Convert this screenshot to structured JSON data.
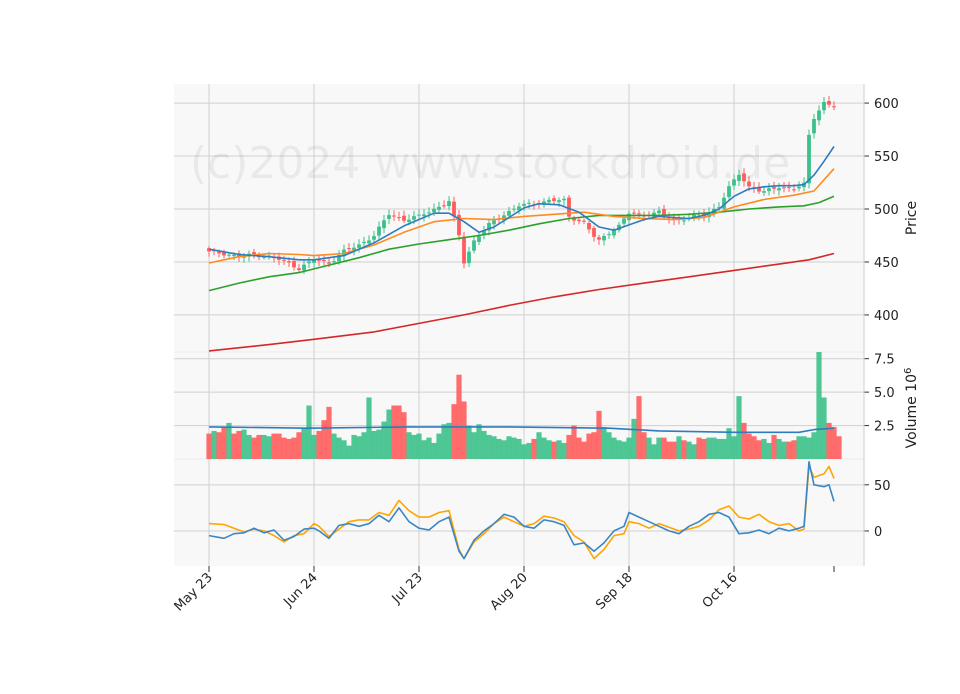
{
  "watermark": "(c)2024 www.stockdroid.de",
  "colors": {
    "panel_bg": "#f8f8f8",
    "grid": "#d0d0d0",
    "up": "#3cc18a",
    "down": "#ff5c5c",
    "sma_fast": "#2e7cbf",
    "sma_mid": "#ff8a1f",
    "sma_slow": "#2ca02c",
    "sma_long": "#d62728",
    "vol_avg": "#2e7cbf",
    "osc_a": "#3b86c4",
    "osc_b": "#ffa500"
  },
  "chart_data": {
    "type": "candlestick",
    "x_tick_labels": [
      "May 23",
      "Jun 24",
      "Jul 23",
      "Aug 20",
      "Sep 18",
      "Oct 16"
    ],
    "x_tick_indices": [
      0,
      21,
      42,
      63,
      84,
      105
    ],
    "n_sessions": 126,
    "price_panel": {
      "ylabel": "Price",
      "yticks": [
        400,
        450,
        500,
        550,
        600
      ],
      "ylim": [
        365,
        618
      ],
      "grid": true,
      "anchors": [
        [
          0,
          460
        ],
        [
          3,
          458
        ],
        [
          6,
          455
        ],
        [
          9,
          457
        ],
        [
          12,
          455
        ],
        [
          15,
          451
        ],
        [
          18,
          444
        ],
        [
          21,
          452
        ],
        [
          24,
          449
        ],
        [
          27,
          460
        ],
        [
          30,
          466
        ],
        [
          33,
          475
        ],
        [
          36,
          495
        ],
        [
          39,
          490
        ],
        [
          42,
          493
        ],
        [
          45,
          500
        ],
        [
          48,
          507
        ],
        [
          50,
          475
        ],
        [
          51,
          450
        ],
        [
          53,
          470
        ],
        [
          56,
          485
        ],
        [
          59,
          495
        ],
        [
          62,
          503
        ],
        [
          65,
          505
        ],
        [
          68,
          508
        ],
        [
          71,
          508
        ],
        [
          72,
          493
        ],
        [
          75,
          487
        ],
        [
          77,
          474
        ],
        [
          78,
          470
        ],
        [
          80,
          478
        ],
        [
          82,
          484
        ],
        [
          84,
          496
        ],
        [
          87,
          494
        ],
        [
          90,
          497
        ],
        [
          93,
          489
        ],
        [
          96,
          492
        ],
        [
          99,
          494
        ],
        [
          102,
          503
        ],
        [
          104,
          520
        ],
        [
          106,
          533
        ],
        [
          108,
          521
        ],
        [
          111,
          516
        ],
        [
          114,
          521
        ],
        [
          117,
          519
        ],
        [
          119,
          523
        ],
        [
          120,
          570
        ],
        [
          121,
          585
        ],
        [
          123,
          601
        ],
        [
          125,
          596
        ]
      ],
      "sma_fast": [
        [
          0,
          462
        ],
        [
          6,
          457
        ],
        [
          12,
          455
        ],
        [
          18,
          452
        ],
        [
          21,
          452
        ],
        [
          27,
          456
        ],
        [
          33,
          468
        ],
        [
          39,
          484
        ],
        [
          45,
          496
        ],
        [
          48,
          496
        ],
        [
          51,
          488
        ],
        [
          54,
          478
        ],
        [
          57,
          483
        ],
        [
          60,
          492
        ],
        [
          63,
          501
        ],
        [
          66,
          505
        ],
        [
          70,
          504
        ],
        [
          74,
          497
        ],
        [
          78,
          483
        ],
        [
          81,
          480
        ],
        [
          84,
          485
        ],
        [
          87,
          490
        ],
        [
          90,
          493
        ],
        [
          93,
          492
        ],
        [
          96,
          491
        ],
        [
          99,
          494
        ],
        [
          102,
          500
        ],
        [
          105,
          512
        ],
        [
          108,
          519
        ],
        [
          111,
          521
        ],
        [
          114,
          522
        ],
        [
          117,
          522
        ],
        [
          119,
          523
        ],
        [
          121,
          532
        ],
        [
          123,
          545
        ],
        [
          125,
          559
        ]
      ],
      "sma_mid": [
        [
          0,
          449
        ],
        [
          6,
          455
        ],
        [
          12,
          458
        ],
        [
          18,
          457
        ],
        [
          21,
          456
        ],
        [
          27,
          458
        ],
        [
          33,
          466
        ],
        [
          39,
          478
        ],
        [
          45,
          488
        ],
        [
          51,
          491
        ],
        [
          57,
          490
        ],
        [
          63,
          493
        ],
        [
          69,
          495
        ],
        [
          75,
          497
        ],
        [
          81,
          493
        ],
        [
          87,
          491
        ],
        [
          93,
          490
        ],
        [
          99,
          492
        ],
        [
          105,
          502
        ],
        [
          111,
          509
        ],
        [
          117,
          513
        ],
        [
          121,
          517
        ],
        [
          125,
          538
        ]
      ],
      "sma_slow": [
        [
          0,
          423
        ],
        [
          6,
          430
        ],
        [
          12,
          436
        ],
        [
          18,
          440
        ],
        [
          24,
          447
        ],
        [
          30,
          454
        ],
        [
          36,
          462
        ],
        [
          42,
          467
        ],
        [
          48,
          471
        ],
        [
          54,
          475
        ],
        [
          60,
          480
        ],
        [
          66,
          486
        ],
        [
          72,
          491
        ],
        [
          78,
          494
        ],
        [
          84,
          494
        ],
        [
          90,
          494
        ],
        [
          96,
          495
        ],
        [
          102,
          497
        ],
        [
          108,
          500
        ],
        [
          114,
          502
        ],
        [
          119,
          503
        ],
        [
          122,
          506
        ],
        [
          125,
          512
        ]
      ],
      "sma_long": [
        [
          0,
          366
        ],
        [
          12,
          372
        ],
        [
          21,
          377
        ],
        [
          33,
          384
        ],
        [
          42,
          392
        ],
        [
          51,
          400
        ],
        [
          60,
          409
        ],
        [
          69,
          417
        ],
        [
          78,
          424
        ],
        [
          87,
          430
        ],
        [
          96,
          436
        ],
        [
          105,
          442
        ],
        [
          114,
          448
        ],
        [
          120,
          452
        ],
        [
          125,
          458
        ]
      ]
    },
    "volume_panel": {
      "ylabel": "Volume  10^6",
      "yticks": [
        2.5,
        5.0,
        7.5
      ],
      "ylim": [
        0,
        8.0
      ],
      "values": [
        1.9,
        2.1,
        2.0,
        2.4,
        2.7,
        1.9,
        2.1,
        2.2,
        1.8,
        1.6,
        1.8,
        1.8,
        1.7,
        1.9,
        1.9,
        1.6,
        1.5,
        1.6,
        2.0,
        2.3,
        4.0,
        1.8,
        2.1,
        2.9,
        3.9,
        1.9,
        1.6,
        1.4,
        1.0,
        1.8,
        1.7,
        2.0,
        4.6,
        2.1,
        2.2,
        2.8,
        3.7,
        4.0,
        4.0,
        3.5,
        2.0,
        1.8,
        1.9,
        1.4,
        1.6,
        1.2,
        1.9,
        2.6,
        2.7,
        4.1,
        6.3,
        4.3,
        2.5,
        2.0,
        2.6,
        2.1,
        1.8,
        1.7,
        1.5,
        1.4,
        1.7,
        1.6,
        1.5,
        1.1,
        1.2,
        1.5,
        2.0,
        1.6,
        1.4,
        1.3,
        1.4,
        1.2,
        1.8,
        2.5,
        1.6,
        1.3,
        1.9,
        2.0,
        3.6,
        2.4,
        2.0,
        1.6,
        1.4,
        1.3,
        1.6,
        3.0,
        4.7,
        2.0,
        1.6,
        1.1,
        1.6,
        1.6,
        1.3,
        1.3,
        1.7,
        1.4,
        1.3,
        1.1,
        1.6,
        1.5,
        1.6,
        1.6,
        1.5,
        1.5,
        2.3,
        1.7,
        4.7,
        2.7,
        1.9,
        1.7,
        1.4,
        1.5,
        1.2,
        1.8,
        1.5,
        1.3,
        1.3,
        1.4,
        1.7,
        1.7,
        1.6,
        2.0,
        8.0,
        4.6,
        2.7,
        2.4,
        1.7
      ],
      "avg": [
        [
          0,
          2.4
        ],
        [
          20,
          2.3
        ],
        [
          40,
          2.4
        ],
        [
          60,
          2.4
        ],
        [
          80,
          2.3
        ],
        [
          90,
          2.1
        ],
        [
          105,
          2.0
        ],
        [
          118,
          2.0
        ],
        [
          121,
          2.2
        ],
        [
          125,
          2.3
        ]
      ]
    },
    "oscillator_panel": {
      "yticks": [
        0,
        50
      ],
      "ylim": [
        -38,
        78
      ],
      "series_a": [
        [
          0,
          -5
        ],
        [
          3,
          -8
        ],
        [
          5,
          -3
        ],
        [
          7,
          -2
        ],
        [
          9,
          3
        ],
        [
          11,
          -2
        ],
        [
          13,
          1
        ],
        [
          15,
          -10
        ],
        [
          17,
          -6
        ],
        [
          19,
          2
        ],
        [
          21,
          3
        ],
        [
          22,
          0
        ],
        [
          24,
          -8
        ],
        [
          26,
          6
        ],
        [
          28,
          8
        ],
        [
          30,
          5
        ],
        [
          32,
          8
        ],
        [
          34,
          17
        ],
        [
          36,
          10
        ],
        [
          38,
          25
        ],
        [
          40,
          10
        ],
        [
          42,
          3
        ],
        [
          44,
          1
        ],
        [
          46,
          10
        ],
        [
          48,
          15
        ],
        [
          50,
          -22
        ],
        [
          51,
          -30
        ],
        [
          53,
          -10
        ],
        [
          55,
          0
        ],
        [
          57,
          8
        ],
        [
          59,
          18
        ],
        [
          61,
          15
        ],
        [
          63,
          5
        ],
        [
          65,
          3
        ],
        [
          67,
          12
        ],
        [
          69,
          10
        ],
        [
          71,
          6
        ],
        [
          73,
          -15
        ],
        [
          75,
          -13
        ],
        [
          77,
          -22
        ],
        [
          79,
          -13
        ],
        [
          81,
          0
        ],
        [
          83,
          5
        ],
        [
          84,
          20
        ],
        [
          86,
          15
        ],
        [
          88,
          10
        ],
        [
          90,
          5
        ],
        [
          92,
          0
        ],
        [
          94,
          -3
        ],
        [
          96,
          5
        ],
        [
          98,
          10
        ],
        [
          100,
          18
        ],
        [
          102,
          20
        ],
        [
          104,
          15
        ],
        [
          106,
          -3
        ],
        [
          108,
          -2
        ],
        [
          110,
          1
        ],
        [
          112,
          -3
        ],
        [
          114,
          3
        ],
        [
          116,
          0
        ],
        [
          118,
          3
        ],
        [
          119,
          5
        ],
        [
          120,
          75
        ],
        [
          121,
          50
        ],
        [
          123,
          48
        ],
        [
          124,
          50
        ],
        [
          125,
          32
        ]
      ],
      "series_b": [
        [
          0,
          8
        ],
        [
          3,
          7
        ],
        [
          5,
          3
        ],
        [
          7,
          -1
        ],
        [
          9,
          2
        ],
        [
          11,
          0
        ],
        [
          13,
          -5
        ],
        [
          15,
          -12
        ],
        [
          17,
          -5
        ],
        [
          19,
          -3
        ],
        [
          21,
          8
        ],
        [
          22,
          5
        ],
        [
          24,
          -6
        ],
        [
          26,
          2
        ],
        [
          28,
          10
        ],
        [
          30,
          12
        ],
        [
          32,
          12
        ],
        [
          34,
          20
        ],
        [
          36,
          17
        ],
        [
          38,
          33
        ],
        [
          40,
          22
        ],
        [
          42,
          15
        ],
        [
          44,
          15
        ],
        [
          46,
          20
        ],
        [
          48,
          22
        ],
        [
          50,
          -20
        ],
        [
          51,
          -30
        ],
        [
          53,
          -12
        ],
        [
          55,
          -3
        ],
        [
          57,
          8
        ],
        [
          59,
          15
        ],
        [
          61,
          10
        ],
        [
          63,
          5
        ],
        [
          65,
          8
        ],
        [
          67,
          16
        ],
        [
          69,
          14
        ],
        [
          71,
          10
        ],
        [
          73,
          -5
        ],
        [
          75,
          -12
        ],
        [
          77,
          -30
        ],
        [
          79,
          -20
        ],
        [
          81,
          -5
        ],
        [
          83,
          -3
        ],
        [
          84,
          10
        ],
        [
          86,
          8
        ],
        [
          88,
          3
        ],
        [
          90,
          8
        ],
        [
          92,
          4
        ],
        [
          94,
          0
        ],
        [
          96,
          2
        ],
        [
          98,
          5
        ],
        [
          100,
          12
        ],
        [
          102,
          23
        ],
        [
          104,
          27
        ],
        [
          106,
          15
        ],
        [
          108,
          13
        ],
        [
          110,
          18
        ],
        [
          112,
          10
        ],
        [
          114,
          6
        ],
        [
          116,
          8
        ],
        [
          118,
          0
        ],
        [
          119,
          2
        ],
        [
          120,
          70
        ],
        [
          121,
          58
        ],
        [
          123,
          62
        ],
        [
          124,
          70
        ],
        [
          125,
          57
        ]
      ]
    }
  }
}
